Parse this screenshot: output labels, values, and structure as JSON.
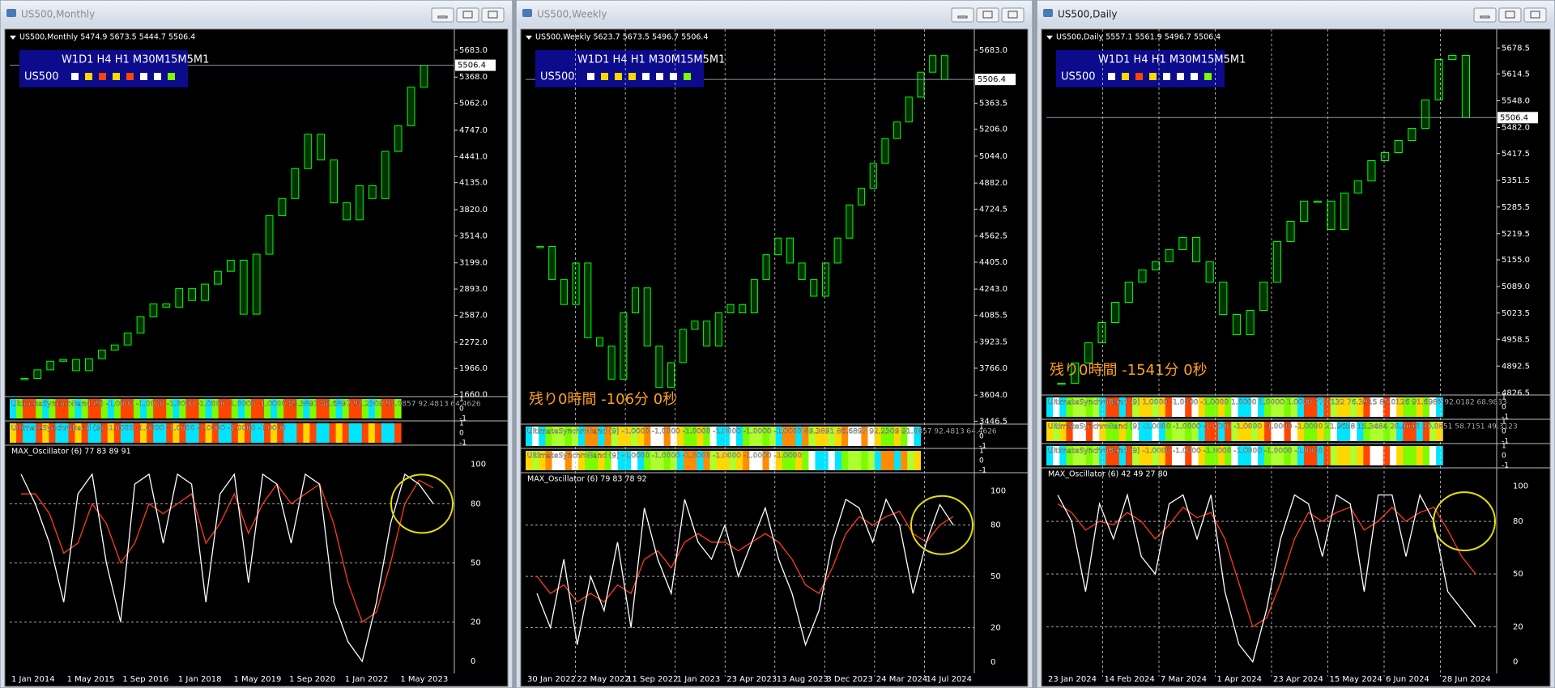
{
  "windows": [
    {
      "title": "US500,Monthly",
      "info": "US500,Monthly  5474.9 5673.5 5444.7 5506.4",
      "panel": {
        "timeframes": "W1D1 H4 H1 M30M15M5M1",
        "symbol": "US500",
        "colors": [
          "#ffffff",
          "#ffd700",
          "#ff4500",
          "#ffd700",
          "#ff4500",
          "#ffffff",
          "#ffffff",
          "#7cfc00"
        ]
      },
      "current_price": 5506.4,
      "price_ylim": [
        1637,
        5890
      ],
      "price_ticks": [
        {
          "value": 5683,
          "label": "5683.0"
        },
        {
          "value": 5368,
          "label": "5368.0"
        },
        {
          "value": 5062,
          "label": "5062.0"
        },
        {
          "value": 4747,
          "label": "4747.0"
        },
        {
          "value": 4441,
          "label": "4441.0"
        },
        {
          "value": 4135,
          "label": "4135.0"
        },
        {
          "value": 3820,
          "label": "3820.0"
        },
        {
          "value": 3514,
          "label": "3514.0"
        },
        {
          "value": 3199,
          "label": "3199.0"
        },
        {
          "value": 2893,
          "label": "2893.0"
        },
        {
          "value": 2587,
          "label": "2587.0"
        },
        {
          "value": 2272,
          "label": "2272.0"
        },
        {
          "value": 1966,
          "label": "1966.0"
        },
        {
          "value": 1660,
          "label": "1660.0"
        }
      ],
      "close": [
        1850,
        1950,
        2050,
        2070,
        1940,
        2080,
        2180,
        2240,
        2380,
        2570,
        2720,
        2680,
        2900,
        2760,
        2950,
        3100,
        3230,
        2600,
        3300,
        3750,
        3950,
        4300,
        4700,
        4400,
        3900,
        3700,
        4100,
        3950,
        4500,
        4800,
        5250,
        5506.4
      ],
      "candle_color": "#00ff00",
      "dates": [
        "1 Jan 2014",
        "1 May 2015",
        "1 Sep 2016",
        "1 Jan 2018",
        "1 May 2019",
        "1 Sep 2020",
        "1 Jan 2022",
        "1 May 2023"
      ],
      "bands": [
        {
          "label": "UltimateSynchroBand (9) -1.0000 -1.0000 -1.0000 -1.0000 -1.0000 -1.0000 89.3891 86.6897 92.2309 91.0857 92.4813 64.4626",
          "scale": [
            1,
            0,
            -1
          ]
        },
        {
          "label": "UltimateSynchroBand (9) -1.0000 -1.0000 -1.0000 -1.0000 -1.0000 -1.0000",
          "scale": [
            1,
            0,
            -1
          ]
        }
      ],
      "band_palette": [
        "#00e5ff",
        "#7cfc00",
        "#ffffff",
        "#ffd700",
        "#ff4500",
        "#adff2f",
        "#ff8c00"
      ],
      "oscillator": {
        "label": "MAX_Oscillator (6) 77 83 89 91",
        "ylim": [
          -2,
          104
        ],
        "ticks": [
          100,
          80,
          50,
          20,
          0
        ],
        "fast": {
          "color": "#ffffff",
          "values": [
            95,
            80,
            60,
            30,
            85,
            95,
            50,
            20,
            90,
            95,
            60,
            95,
            90,
            30,
            85,
            95,
            40,
            95,
            90,
            60,
            95,
            90,
            30,
            10,
            0,
            30,
            70,
            95,
            90,
            80
          ]
        },
        "slow": {
          "color": "#ff3b1f",
          "values": [
            85,
            85,
            75,
            55,
            60,
            80,
            70,
            50,
            60,
            80,
            75,
            80,
            85,
            60,
            70,
            85,
            65,
            80,
            90,
            80,
            85,
            90,
            70,
            40,
            20,
            25,
            50,
            80,
            92,
            88
          ]
        }
      }
    },
    {
      "title": "US500,Weekly",
      "info": "US500,Weekly  5623.7 5673.5 5496.7 5506.4",
      "panel": {
        "timeframes": "W1D1 H4 H1 M30M15M5M1",
        "symbol": "US500",
        "colors": [
          "#ffffff",
          "#ffd700",
          "#ffd700",
          "#ffd700",
          "#ffffff",
          "#ffffff",
          "#ffffff",
          "#7cfc00"
        ]
      },
      "current_price": 5506.4,
      "countdown": "残り0時間 -106分 0秒",
      "price_ylim": [
        3429,
        5790
      ],
      "price_ticks": [
        {
          "value": 5683,
          "label": "5683.0"
        },
        {
          "value": 5363.5,
          "label": "5363.5"
        },
        {
          "value": 5206,
          "label": "5206.0"
        },
        {
          "value": 5044,
          "label": "5044.0"
        },
        {
          "value": 4882,
          "label": "4882.0"
        },
        {
          "value": 4724.5,
          "label": "4724.5"
        },
        {
          "value": 4562.5,
          "label": "4562.5"
        },
        {
          "value": 4405,
          "label": "4405.0"
        },
        {
          "value": 4243,
          "label": "4243.0"
        },
        {
          "value": 4085.5,
          "label": "4085.5"
        },
        {
          "value": 3923.5,
          "label": "3923.5"
        },
        {
          "value": 3766,
          "label": "3766.0"
        },
        {
          "value": 3604,
          "label": "3604.0"
        },
        {
          "value": 3446.5,
          "label": "3446.5"
        }
      ],
      "close": [
        4500,
        4300,
        4150,
        4400,
        3950,
        3900,
        3700,
        4100,
        4250,
        3900,
        3650,
        3800,
        4000,
        4050,
        3900,
        4100,
        4150,
        4100,
        4300,
        4450,
        4550,
        4400,
        4300,
        4200,
        4400,
        4550,
        4750,
        4850,
        5000,
        5150,
        5250,
        5400,
        5550,
        5650,
        5506.4
      ],
      "candle_color": "#00ff00",
      "dates": [
        "30 Jan 2022",
        "22 May 2022",
        "11 Sep 2022",
        "1 Jan 2023",
        "23 Apr 2023",
        "13 Aug 2023",
        "3 Dec 2023",
        "24 Mar 2024",
        "14 Jul 2024"
      ],
      "bands": [
        {
          "label": "UltimateSynchroBand (9) -1.0000 -1.0000 -1.0000 -1.0000 -1.0000 -1.0000 89.3891 86.6897 92.2309 91.0857 92.4813 64.4626",
          "scale": [
            1,
            0,
            -1
          ]
        },
        {
          "label": "UltimateSynchroBand (9) -1.0000 -1.0000 -1.0000 -1.0000 -1.0000 -1.0000",
          "scale": [
            1,
            0,
            -1
          ]
        }
      ],
      "band_palette": [
        "#00e5ff",
        "#7cfc00",
        "#ffffff",
        "#ffd700",
        "#ff8c00",
        "#adff2f"
      ],
      "oscillator": {
        "label": "MAX_Oscillator (6) 79 83 78 92",
        "ylim": [
          -2,
          104
        ],
        "ticks": [
          100,
          80,
          50,
          20,
          0
        ],
        "fast": {
          "color": "#ffffff",
          "values": [
            40,
            20,
            60,
            10,
            50,
            30,
            70,
            20,
            90,
            60,
            40,
            95,
            70,
            60,
            80,
            50,
            70,
            90,
            60,
            40,
            10,
            30,
            70,
            95,
            90,
            70,
            95,
            80,
            40,
            70,
            92,
            80
          ]
        },
        "slow": {
          "color": "#ff3b1f",
          "values": [
            50,
            40,
            45,
            35,
            40,
            35,
            45,
            40,
            60,
            65,
            55,
            70,
            75,
            70,
            70,
            65,
            70,
            75,
            70,
            60,
            45,
            40,
            55,
            75,
            85,
            80,
            85,
            88,
            75,
            70,
            80,
            85
          ]
        }
      }
    },
    {
      "title": "US500,Daily",
      "info": "US500,Daily  5557.1 5561.9 5496.7 5506.4",
      "panel": {
        "timeframes": "W1D1 H4 H1 M30M15M5M1",
        "symbol": "US500",
        "colors": [
          "#ffffff",
          "#ffd700",
          "#ff4500",
          "#ffd700",
          "#ffffff",
          "#ffffff",
          "#ffffff",
          "#7cfc00"
        ]
      },
      "current_price": 5506.4,
      "countdown": "残り0時間 -1541分 0秒",
      "price_ylim": [
        4821,
        5717
      ],
      "price_ticks": [
        {
          "value": 5678.5,
          "label": "5678.5"
        },
        {
          "value": 5614.5,
          "label": "5614.5"
        },
        {
          "value": 5548,
          "label": "5548.0"
        },
        {
          "value": 5482,
          "label": "5482.0"
        },
        {
          "value": 5417.5,
          "label": "5417.5"
        },
        {
          "value": 5351.5,
          "label": "5351.5"
        },
        {
          "value": 5285.5,
          "label": "5285.5"
        },
        {
          "value": 5219.5,
          "label": "5219.5"
        },
        {
          "value": 5155,
          "label": "5155.0"
        },
        {
          "value": 5089,
          "label": "5089.0"
        },
        {
          "value": 5023.5,
          "label": "5023.5"
        },
        {
          "value": 4958.5,
          "label": "4958.5"
        },
        {
          "value": 4892.5,
          "label": "4892.5"
        },
        {
          "value": 4826.5,
          "label": "4826.5"
        }
      ],
      "close": [
        4850,
        4900,
        4950,
        5000,
        5050,
        5100,
        5130,
        5150,
        5180,
        5210,
        5150,
        5100,
        5020,
        4970,
        5030,
        5100,
        5200,
        5250,
        5300,
        5300,
        5230,
        5320,
        5350,
        5400,
        5420,
        5450,
        5480,
        5550,
        5650,
        5660,
        5506.4
      ],
      "candle_color": "#00ff00",
      "dates": [
        "23 Jan 2024",
        "14 Feb 2024",
        "7 Mar 2024",
        "1 Apr 2024",
        "23 Apr 2024",
        "15 May 2024",
        "6 Jun 2024",
        "28 Jun 2024"
      ],
      "bands": [
        {
          "label": "UltimateSynchroBand (9) 1.0000 -1.0000 -1.0000 1.0000 1.0000 1.0000 77.6132 76.3915 85.0126 91.6986 92.0182 68.9833",
          "scale": [
            1,
            0,
            -1
          ]
        },
        {
          "label": "UltimateSynchroBand (9) -1.0000 -1.0000 -1.0000 -1.0000 -1.0000 -1.0000 21.9658 15.3484 20.4640 40.0851 58.7151 49.3123",
          "scale": [
            1,
            0,
            -1
          ]
        },
        {
          "label": "UltimateSynchroBand (9) -1.0000 -1.0000 -1.0000 -1.0000 -1.0000 -1.0000",
          "scale": [
            1,
            0,
            -1
          ]
        }
      ],
      "band_palette": [
        "#00e5ff",
        "#7cfc00",
        "#ffffff",
        "#ffd700",
        "#ff4500",
        "#adff2f"
      ],
      "oscillator": {
        "label": "MAX_Oscillator (6) 42 49 27 80",
        "ylim": [
          -2,
          104
        ],
        "ticks": [
          100,
          80,
          50,
          20,
          0
        ],
        "fast": {
          "color": "#ffffff",
          "values": [
            95,
            80,
            40,
            90,
            70,
            95,
            60,
            50,
            90,
            95,
            70,
            95,
            40,
            10,
            0,
            30,
            70,
            95,
            90,
            60,
            95,
            90,
            40,
            95,
            95,
            60,
            95,
            80,
            40,
            30,
            20
          ]
        },
        "slow": {
          "color": "#ff3b1f",
          "values": [
            90,
            85,
            75,
            80,
            78,
            85,
            80,
            70,
            78,
            88,
            82,
            85,
            70,
            45,
            20,
            25,
            45,
            70,
            85,
            80,
            85,
            88,
            75,
            80,
            88,
            80,
            85,
            88,
            75,
            60,
            50
          ]
        }
      }
    }
  ]
}
